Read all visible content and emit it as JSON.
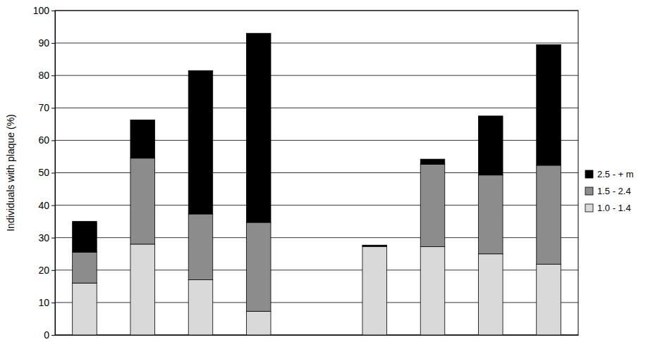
{
  "chart_data": {
    "type": "bar",
    "stacked": true,
    "grid": true,
    "legend": "right",
    "y_label": "Individuals with plaque (%)",
    "categories": [
      null,
      null,
      null,
      null,
      null,
      null,
      null,
      null,
      null
    ],
    "ylim": [
      0,
      100
    ],
    "yticks": [
      0,
      10,
      20,
      30,
      40,
      50,
      60,
      70,
      80,
      90,
      100
    ],
    "series": [
      {
        "name": "1.0 - 1.4",
        "color": "#d9d9d9",
        "values": [
          16,
          28,
          17,
          7.3,
          null,
          27.2,
          27.2,
          25,
          21.8
        ]
      },
      {
        "name": "1.5 - 2.4",
        "color": "#8c8c8c",
        "values": [
          9.5,
          26.5,
          20.3,
          27.4,
          null,
          0.3,
          25.4,
          24.3,
          30.5
        ]
      },
      {
        "name": "2.5 - + m",
        "color": "#000000",
        "values": [
          9.5,
          11.8,
          44.2,
          58.3,
          null,
          0.2,
          1.6,
          18.2,
          37.2
        ]
      }
    ]
  }
}
